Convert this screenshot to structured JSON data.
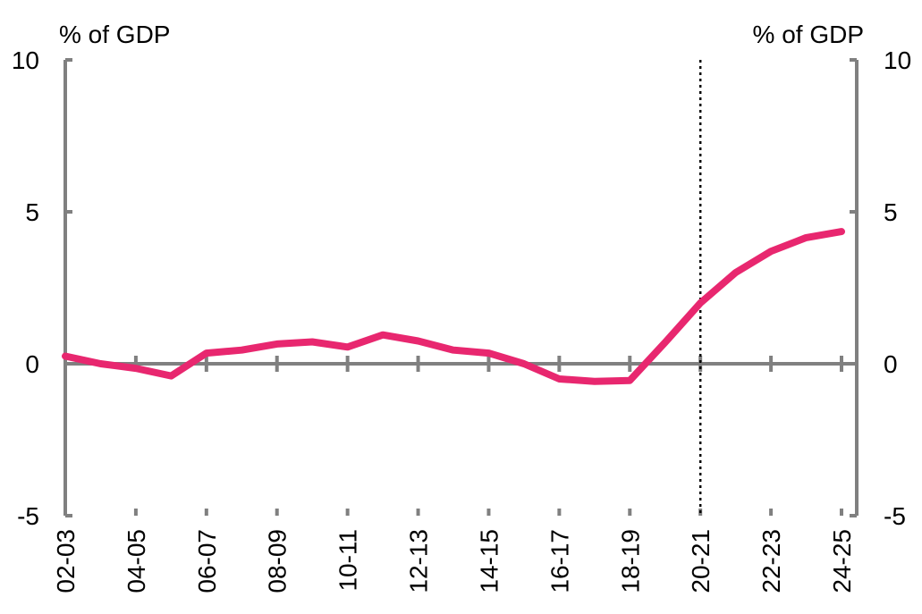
{
  "chart_data": {
    "type": "line",
    "ylabel_left": "% of GDP",
    "ylabel_right": "% of GDP",
    "ylim": [
      -5,
      10
    ],
    "yticks": [
      -5,
      0,
      5,
      10
    ],
    "ytick_labels": [
      "-5",
      "0",
      "5",
      "10"
    ],
    "x": [
      "02-03",
      "03-04",
      "04-05",
      "05-06",
      "06-07",
      "07-08",
      "08-09",
      "09-10",
      "10-11",
      "11-12",
      "12-13",
      "13-14",
      "14-15",
      "15-16",
      "16-17",
      "17-18",
      "18-19",
      "19-20",
      "20-21",
      "21-22",
      "22-23",
      "23-24",
      "24-25"
    ],
    "xtick_labels": [
      "02-03",
      "04-05",
      "06-07",
      "08-09",
      "10-11",
      "12-13",
      "14-15",
      "16-17",
      "18-19",
      "20-21",
      "22-23",
      "24-25"
    ],
    "series": [
      {
        "color": "#e8276f",
        "values": [
          0.25,
          0.0,
          -0.15,
          -0.4,
          0.35,
          0.45,
          0.65,
          0.72,
          0.55,
          0.95,
          0.75,
          0.45,
          0.35,
          0.0,
          -0.5,
          -0.58,
          -0.55,
          0.7,
          2.0,
          3.0,
          3.7,
          4.15,
          4.35
        ]
      }
    ],
    "divider_at": "20-21",
    "grid": false,
    "colors": {
      "axis": "#808080",
      "line": "#e8276f",
      "divider": "#000000"
    }
  }
}
